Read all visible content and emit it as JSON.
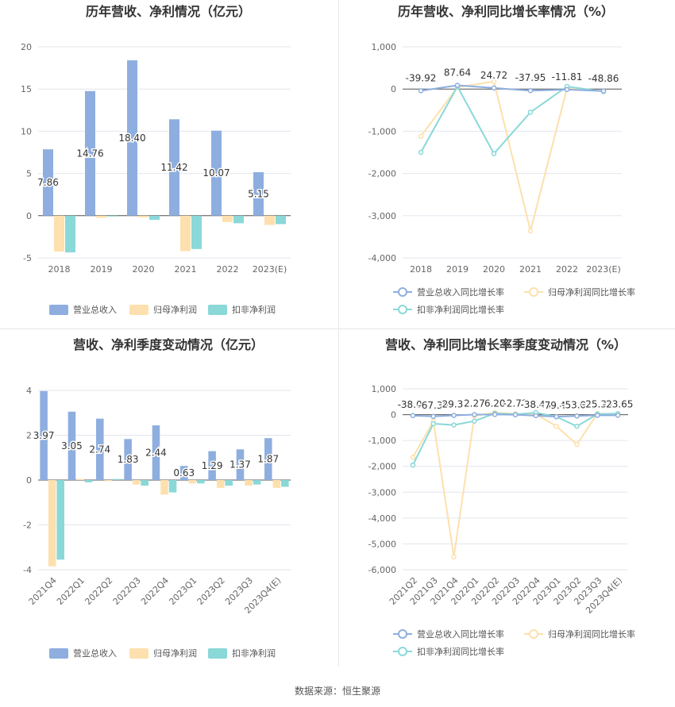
{
  "colors": {
    "revenue": "#8eaedf",
    "net_profit": "#fde0ae",
    "deducted_profit": "#8ad8d8",
    "grid": "#e3e6ee",
    "axis_text": "#666666",
    "title": "#333333"
  },
  "source": "数据来源：恒生聚源",
  "chart_data": [
    {
      "type": "bar",
      "title": "历年营收、净利情况（亿元）",
      "categories": [
        "2018",
        "2019",
        "2020",
        "2021",
        "2022",
        "2023(E)"
      ],
      "ylim": [
        -5,
        20
      ],
      "yticks": [
        -5,
        0,
        5,
        10,
        15,
        20
      ],
      "series": [
        {
          "name": "营业总收入",
          "values": [
            7.86,
            14.76,
            18.4,
            11.42,
            10.07,
            5.15
          ]
        },
        {
          "name": "归母净利润",
          "values": [
            -4.25,
            -0.25,
            -0.2,
            -4.2,
            -0.75,
            -1.1
          ]
        },
        {
          "name": "扣非净利润",
          "values": [
            -4.35,
            -0.1,
            -0.5,
            -3.95,
            -0.9,
            -1.0
          ]
        }
      ],
      "data_labels": [
        "7.86",
        "14.76",
        "18.40",
        "11.42",
        "10.07",
        "5.15"
      ],
      "legend": "bottom"
    },
    {
      "type": "line",
      "title": "历年营收、净利同比增长率情况（%）",
      "categories": [
        "2018",
        "2019",
        "2020",
        "2021",
        "2022",
        "2023(E)"
      ],
      "ylim": [
        -4000,
        1000
      ],
      "yticks": [
        -4000,
        -3000,
        -2000,
        -1000,
        0,
        1000
      ],
      "ytick_labels": [
        "-4,000",
        "-3,000",
        "-2,000",
        "-1,000",
        "0",
        "1,000"
      ],
      "series": [
        {
          "name": "营业总收入同比增长率",
          "values": [
            -39.92,
            87.64,
            24.72,
            -37.95,
            -11.81,
            -48.86
          ]
        },
        {
          "name": "归母净利润同比增长率",
          "values": [
            -1120,
            40,
            180,
            -3360,
            20,
            -50
          ]
        },
        {
          "name": "扣非净利润同比增长率",
          "values": [
            -1500,
            60,
            -1530,
            -550,
            60,
            -60
          ]
        }
      ],
      "data_labels": [
        "-39.92",
        "87.64",
        "24.72",
        "-37.95",
        "-11.81",
        "-48.86"
      ],
      "legend": "bottom"
    },
    {
      "type": "bar",
      "title": "营收、净利季度变动情况（亿元）",
      "categories": [
        "2021Q4",
        "2022Q1",
        "2022Q2",
        "2022Q3",
        "2022Q4",
        "2023Q1",
        "2023Q2",
        "2023Q3",
        "2023Q4(E)"
      ],
      "ylim": [
        -4,
        4
      ],
      "yticks": [
        -4,
        -2,
        0,
        2,
        4
      ],
      "series": [
        {
          "name": "营业总收入",
          "values": [
            3.97,
            3.05,
            2.74,
            1.83,
            2.44,
            0.63,
            1.29,
            1.37,
            1.87
          ]
        },
        {
          "name": "归母净利润",
          "values": [
            -3.85,
            0.05,
            -0.05,
            -0.2,
            -0.65,
            -0.15,
            -0.35,
            -0.25,
            -0.35
          ]
        },
        {
          "name": "扣非净利润",
          "values": [
            -3.55,
            -0.1,
            0.05,
            -0.25,
            -0.55,
            -0.15,
            -0.25,
            -0.2,
            -0.3
          ]
        }
      ],
      "data_labels": [
        "3.97",
        "3.05",
        "2.74",
        "1.83",
        "2.44",
        "0.63",
        "1.29",
        "1.37",
        "1.87"
      ],
      "legend": "bottom"
    },
    {
      "type": "line",
      "title": "营收、净利同比增长率季度变动情况（%）",
      "categories": [
        "2021Q2",
        "2021Q3",
        "2021Q4",
        "2022Q1",
        "2022Q2",
        "2022Q3",
        "2022Q4",
        "2023Q1",
        "2023Q2",
        "2023Q3",
        "2023Q4(E)"
      ],
      "ylim": [
        -6000,
        1000
      ],
      "yticks": [
        -6000,
        -5000,
        -4000,
        -3000,
        -2000,
        -1000,
        0,
        1000
      ],
      "ytick_labels": [
        "-6,000",
        "-5,000",
        "-4,000",
        "-3,000",
        "-2,000",
        "-1,000",
        "0",
        "1,000"
      ],
      "series": [
        {
          "name": "营业总收入同比增长率",
          "values": [
            -38.04,
            -67.36,
            -29.37,
            2.27,
            6.2,
            -2.72,
            -38.43,
            -79.45,
            -53.02,
            -25.34,
            -23.65
          ]
        },
        {
          "name": "归母净利润同比增长率",
          "values": [
            -1650,
            -250,
            -5500,
            -50,
            80,
            30,
            20,
            -450,
            -1150,
            40,
            20
          ]
        },
        {
          "name": "扣非净利润同比增长率",
          "values": [
            -1950,
            -350,
            -400,
            -250,
            50,
            10,
            80,
            -80,
            -450,
            20,
            40
          ]
        }
      ],
      "data_labels": [
        "-38.04",
        "-67.36",
        "-29.37",
        "2.27",
        "6.20",
        "-2.72",
        "-38.43",
        "-79.45",
        "-53.02",
        "-25.34",
        "-23.65"
      ],
      "legend": "bottom"
    }
  ]
}
